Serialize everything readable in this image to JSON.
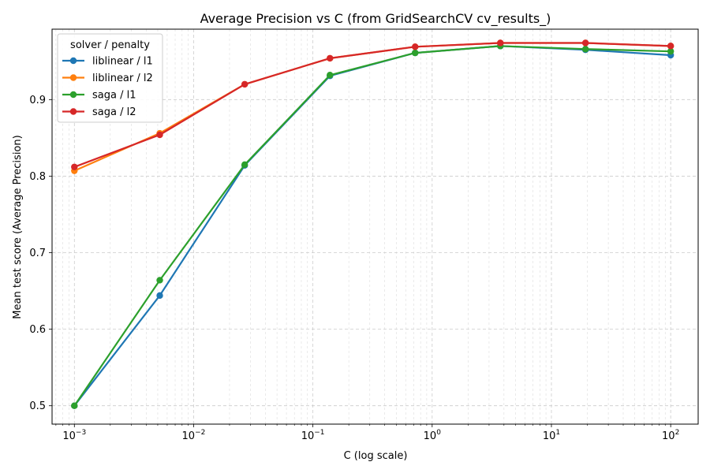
{
  "chart_data": {
    "type": "line",
    "title": "Average Precision vs C (from GridSearchCV cv_results_)",
    "xlabel": "C (log scale)",
    "ylabel": "Mean test score (Average Precision)",
    "x_scale": "log",
    "xlim": [
      0.00065,
      170
    ],
    "ylim": [
      0.476,
      0.992
    ],
    "grid": true,
    "legend_title": "solver / penalty",
    "legend_position": "top-left",
    "x": [
      0.001,
      0.0052,
      0.0268,
      0.139,
      0.72,
      3.73,
      19.3,
      100
    ],
    "x_ticks": [
      {
        "value": 0.001,
        "base": "10",
        "exp": "−3"
      },
      {
        "value": 0.01,
        "base": "10",
        "exp": "−2"
      },
      {
        "value": 0.1,
        "base": "10",
        "exp": "−1"
      },
      {
        "value": 1,
        "base": "10",
        "exp": "0"
      },
      {
        "value": 10,
        "base": "10",
        "exp": "1"
      },
      {
        "value": 100,
        "base": "10",
        "exp": "2"
      }
    ],
    "y_ticks": [
      {
        "value": 0.5,
        "label": "0.5"
      },
      {
        "value": 0.6,
        "label": "0.6"
      },
      {
        "value": 0.7,
        "label": "0.7"
      },
      {
        "value": 0.8,
        "label": "0.8"
      },
      {
        "value": 0.9,
        "label": "0.9"
      }
    ],
    "series": [
      {
        "name": "liblinear / l1",
        "color": "#1f77b4",
        "values": [
          0.5,
          0.644,
          0.814,
          0.931,
          0.961,
          0.97,
          0.965,
          0.958
        ]
      },
      {
        "name": "liblinear / l2",
        "color": "#ff7f0e",
        "values": [
          0.807,
          0.856,
          0.92,
          0.954,
          0.969,
          0.974,
          0.974,
          0.97
        ]
      },
      {
        "name": "saga / l1",
        "color": "#2ca02c",
        "values": [
          0.5,
          0.664,
          0.815,
          0.932,
          0.961,
          0.97,
          0.966,
          0.963
        ]
      },
      {
        "name": "saga / l2",
        "color": "#d62728",
        "values": [
          0.812,
          0.854,
          0.92,
          0.954,
          0.969,
          0.974,
          0.974,
          0.97
        ]
      }
    ]
  }
}
